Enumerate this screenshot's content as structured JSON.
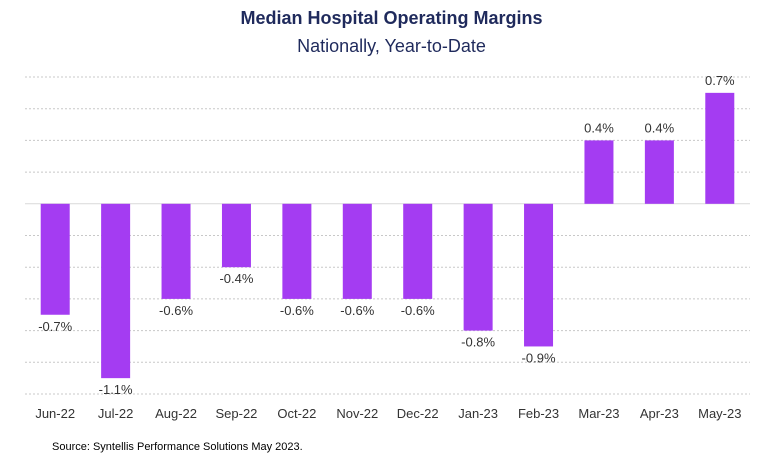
{
  "colors": {
    "bar": "#a43cf2",
    "grid": "#c8c8c8",
    "axis": "#d9d9d9",
    "label": "#333333",
    "title": "#1f2a5c"
  },
  "footer": {
    "source": "Source: Syntellis Performance Solutions May 2023."
  },
  "chart_data": {
    "type": "bar",
    "title": "Median Hospital Operating Margins",
    "subtitle": "Nationally, Year-to-Date",
    "xlabel": "",
    "ylabel": "",
    "ylim": [
      -1.2,
      0.8
    ],
    "grid": true,
    "categories": [
      "Jun-22",
      "Jul-22",
      "Aug-22",
      "Sep-22",
      "Oct-22",
      "Nov-22",
      "Dec-22",
      "Jan-23",
      "Feb-23",
      "Mar-23",
      "Apr-23",
      "May-23"
    ],
    "values": [
      -0.7,
      -1.1,
      -0.6,
      -0.4,
      -0.6,
      -0.6,
      -0.6,
      -0.8,
      -0.9,
      0.4,
      0.4,
      0.7
    ],
    "data_labels": [
      "-0.7%",
      "-1.1%",
      "-0.6%",
      "-0.4%",
      "-0.6%",
      "-0.6%",
      "-0.6%",
      "-0.8%",
      "-0.9%",
      "0.4%",
      "0.4%",
      "0.7%"
    ]
  }
}
